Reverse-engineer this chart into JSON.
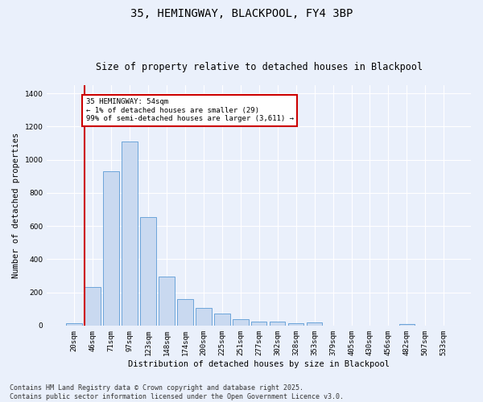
{
  "title": "35, HEMINGWAY, BLACKPOOL, FY4 3BP",
  "subtitle": "Size of property relative to detached houses in Blackpool",
  "xlabel": "Distribution of detached houses by size in Blackpool",
  "ylabel": "Number of detached properties",
  "categories": [
    "20sqm",
    "46sqm",
    "71sqm",
    "97sqm",
    "123sqm",
    "148sqm",
    "174sqm",
    "200sqm",
    "225sqm",
    "251sqm",
    "277sqm",
    "302sqm",
    "328sqm",
    "353sqm",
    "379sqm",
    "405sqm",
    "430sqm",
    "456sqm",
    "482sqm",
    "507sqm",
    "533sqm"
  ],
  "values": [
    15,
    230,
    930,
    1110,
    655,
    295,
    160,
    105,
    70,
    38,
    25,
    25,
    15,
    20,
    0,
    0,
    0,
    0,
    10,
    0,
    0
  ],
  "bar_color": "#c9d9f0",
  "bar_edge_color": "#5b9bd5",
  "vline_color": "#cc0000",
  "annotation_text": "35 HEMINGWAY: 54sqm\n← 1% of detached houses are smaller (29)\n99% of semi-detached houses are larger (3,611) →",
  "annotation_box_color": "#ffffff",
  "annotation_box_edge": "#cc0000",
  "ylim": [
    0,
    1450
  ],
  "yticks": [
    0,
    200,
    400,
    600,
    800,
    1000,
    1200,
    1400
  ],
  "footnote": "Contains HM Land Registry data © Crown copyright and database right 2025.\nContains public sector information licensed under the Open Government Licence v3.0.",
  "bg_color": "#eaf0fb",
  "title_fontsize": 10,
  "subtitle_fontsize": 8.5,
  "axis_label_fontsize": 7.5,
  "tick_fontsize": 6.5,
  "annotation_fontsize": 6.5,
  "footnote_fontsize": 6.0
}
